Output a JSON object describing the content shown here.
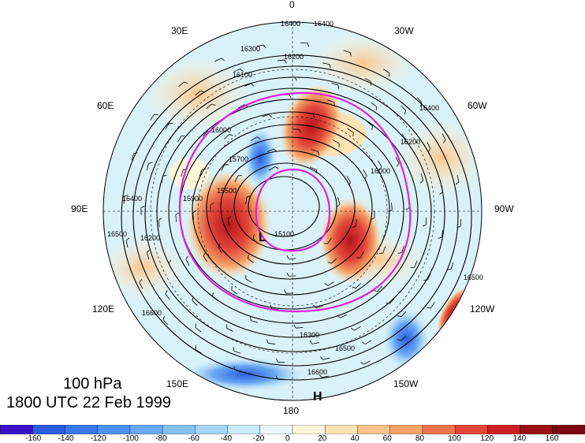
{
  "lon_labels": {
    "top": "0",
    "bottom": "180",
    "left_top": "30E",
    "right_top": "30W",
    "left_60": "60E",
    "right_60": "60W",
    "left_90": "90E",
    "right_90": "90W",
    "left_120": "120E",
    "right_120": "120W",
    "left_150": "150E",
    "right_150": "150W"
  },
  "caption": {
    "level": "100 hPa",
    "time": "1800 UTC 22 Feb 1999"
  },
  "markers": {
    "high": "H",
    "low": "L"
  },
  "contour_labels": [
    "16400",
    "16400",
    "16300",
    "16200",
    "16100",
    "16000",
    "15900",
    "15700",
    "15500",
    "15100",
    "16200",
    "16500",
    "16400",
    "16300",
    "16500",
    "16600",
    "16000",
    "16200",
    "16400",
    "16500",
    "16600"
  ],
  "colorbar": {
    "ticks": [
      "-160",
      "-140",
      "-120",
      "-100",
      "-80",
      "-60",
      "-40",
      "-20",
      "0",
      "20",
      "40",
      "60",
      "80",
      "100",
      "120",
      "140",
      "160"
    ],
    "colors": [
      "#3d10c8",
      "#2c5ce0",
      "#3b78e8",
      "#4f91ee",
      "#69a9f2",
      "#85c0f4",
      "#a5d6f8",
      "#c8ecfa",
      "#eaf8fb",
      "#fdf7dc",
      "#fde3b6",
      "#f9c58c",
      "#f4a46a",
      "#ec7650",
      "#e1463a",
      "#cc1f25",
      "#9a0e15",
      "#7a0812"
    ]
  },
  "colors": {
    "ridge": "#e03020",
    "trough": "#2c5ce0",
    "circle": "#e020e0"
  }
}
